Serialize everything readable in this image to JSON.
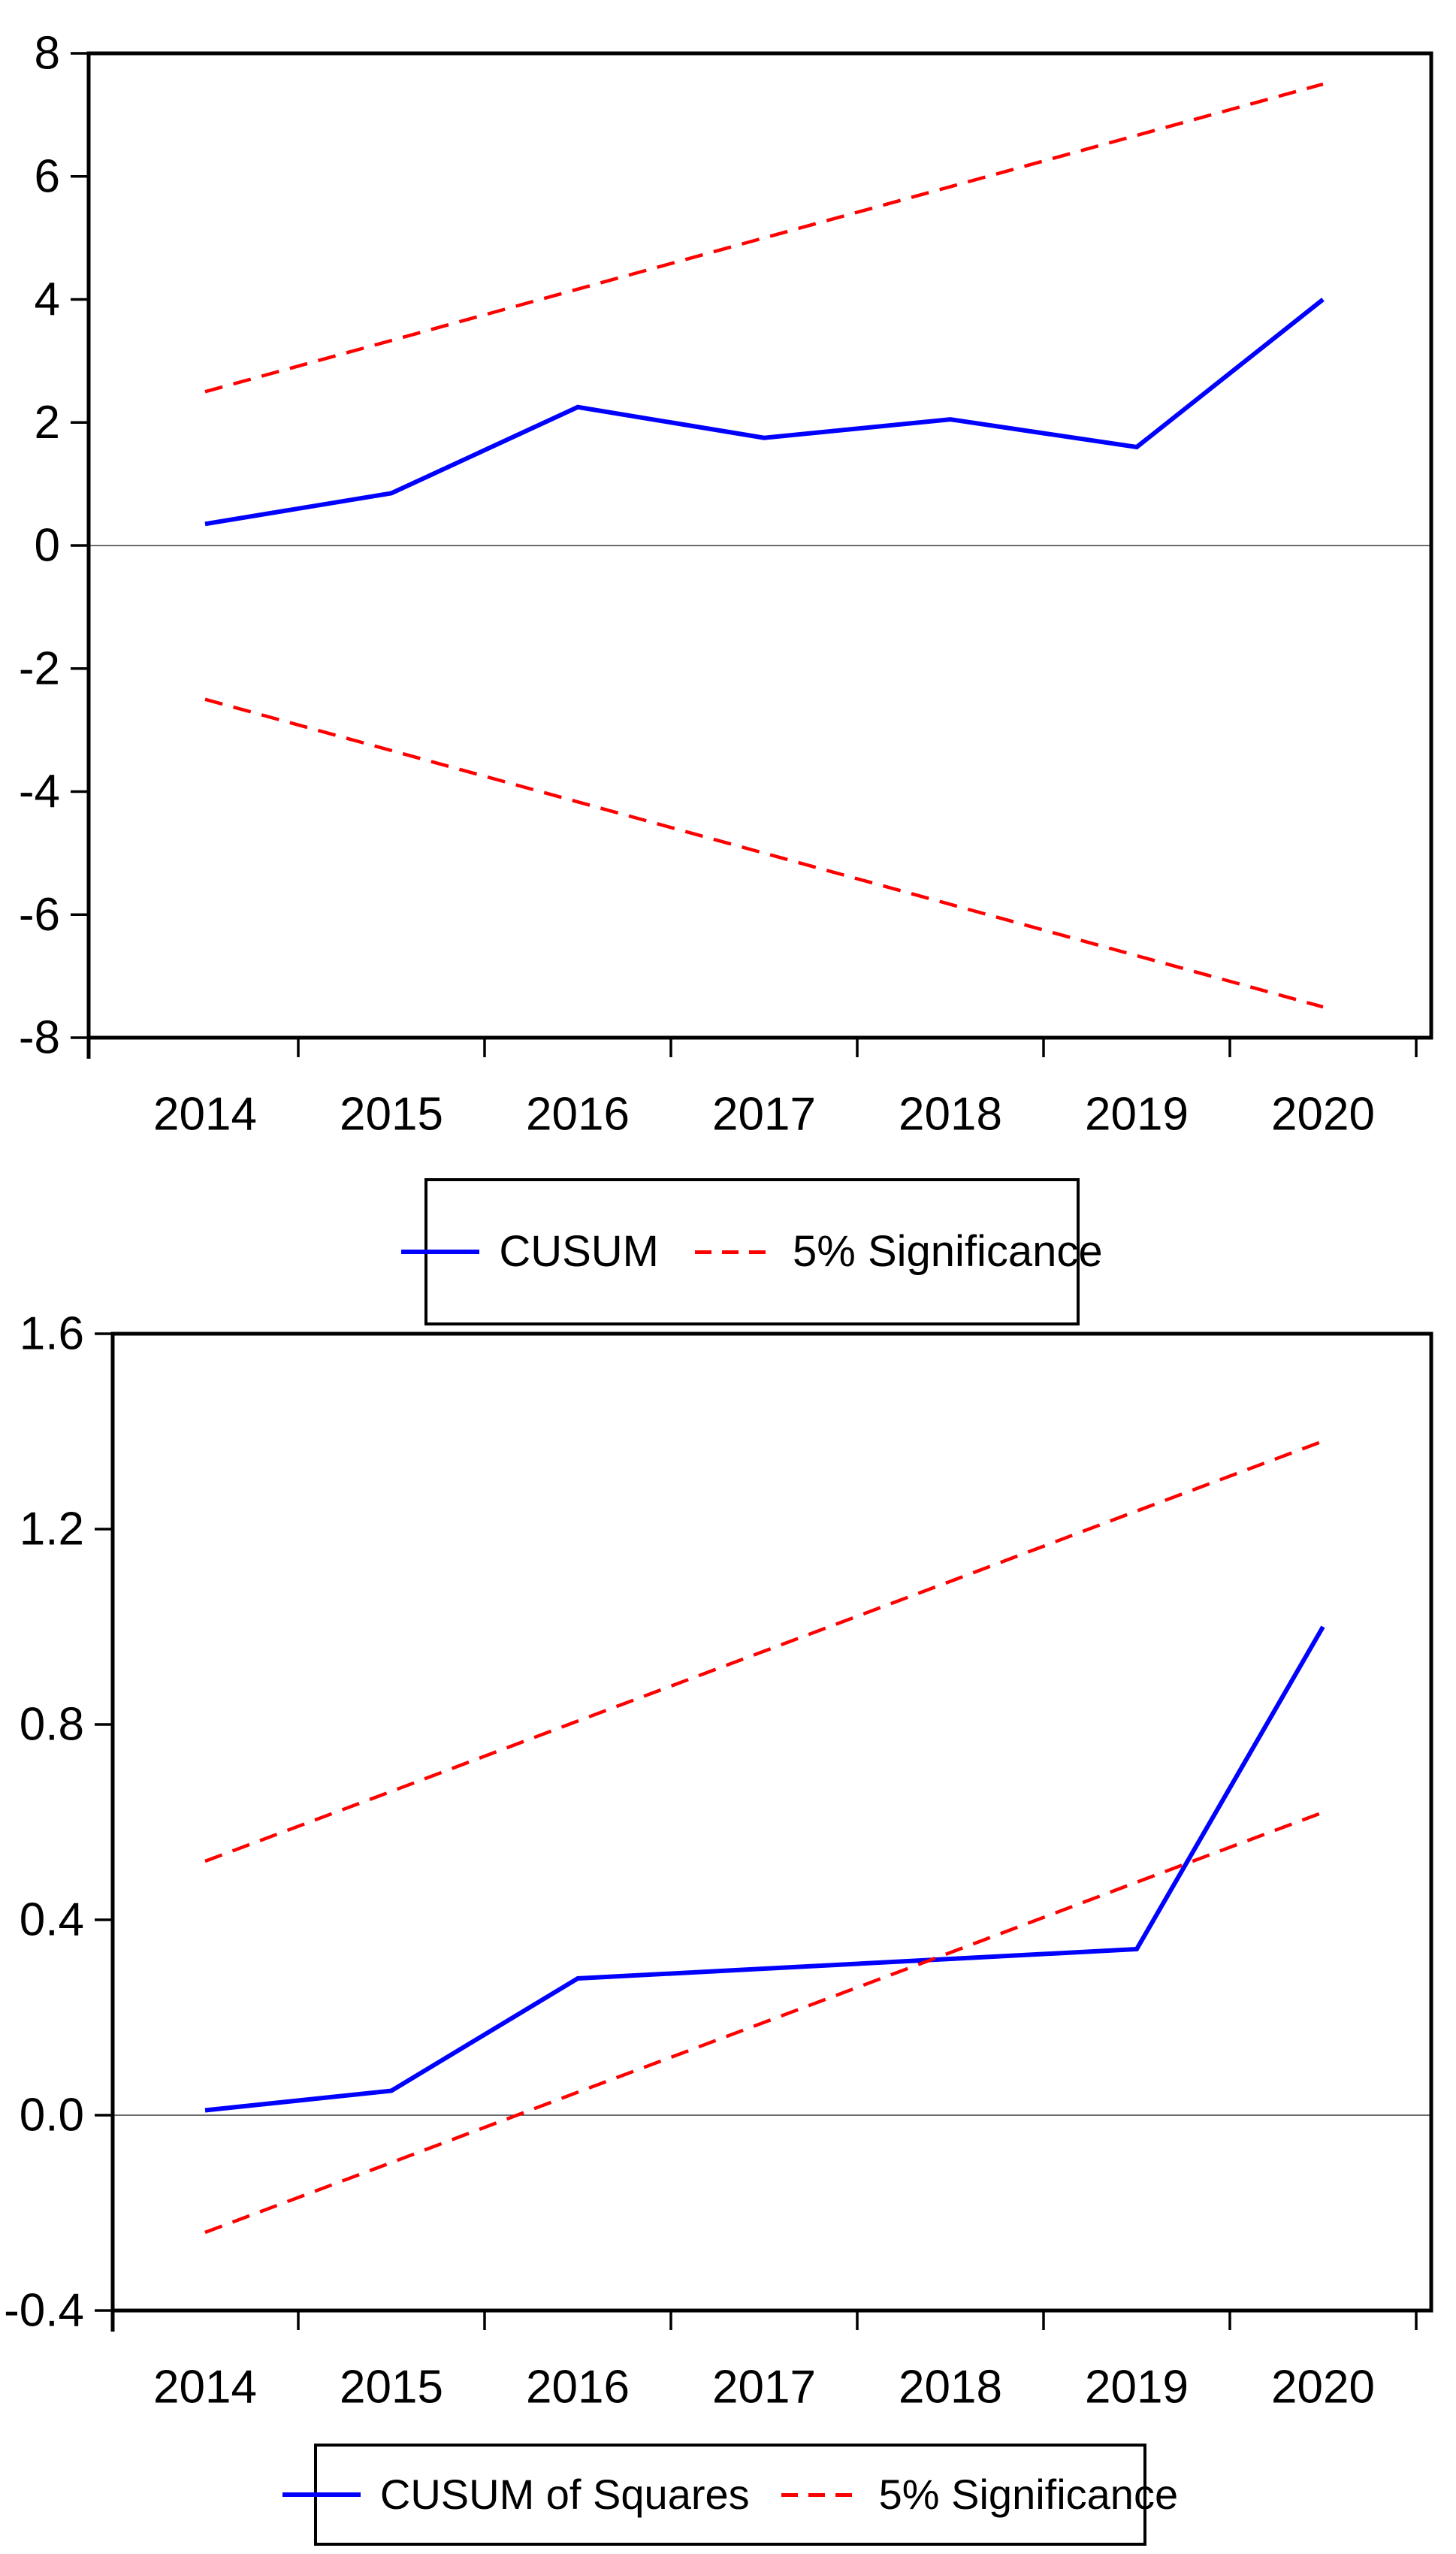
{
  "figure_background": "#ffffff",
  "accent_colors": {
    "series": "#0000ff",
    "significance": "#ff0000",
    "axis": "#000000"
  },
  "chart_data": [
    {
      "type": "line",
      "title": "",
      "xlabel": "",
      "ylabel": "",
      "x": [
        2014,
        2015,
        2016,
        2017,
        2018,
        2019,
        2020
      ],
      "xtick_labels": [
        "2014",
        "2015",
        "2016",
        "2017",
        "2018",
        "2019",
        "2020"
      ],
      "ylim": [
        -8,
        8
      ],
      "ytick_labels": [
        "8",
        "6",
        "4",
        "2",
        "0",
        "-2",
        "-4",
        "-6",
        "-8"
      ],
      "ytick_values": [
        8,
        6,
        4,
        2,
        0,
        -2,
        -4,
        -6,
        -8
      ],
      "grid": false,
      "zero_line": true,
      "legend_position": "below-center",
      "series": [
        {
          "name": "CUSUM",
          "color": "#0000ff",
          "style": "solid",
          "values": [
            0.35,
            0.85,
            2.25,
            1.75,
            2.05,
            1.6,
            4.0
          ]
        },
        {
          "name": "5% Significance (upper bound)",
          "color": "#ff0000",
          "style": "dashed",
          "values": [
            2.5,
            3.333,
            4.167,
            5.0,
            5.833,
            6.667,
            7.5
          ]
        },
        {
          "name": "5% Significance (lower bound)",
          "color": "#ff0000",
          "style": "dashed",
          "values": [
            -2.5,
            -3.333,
            -4.167,
            -5.0,
            -5.833,
            -6.667,
            -7.5
          ]
        }
      ],
      "legend": [
        {
          "label": "CUSUM",
          "color": "#0000ff",
          "style": "solid"
        },
        {
          "label": "5% Significance",
          "color": "#ff0000",
          "style": "dashed"
        }
      ]
    },
    {
      "type": "line",
      "title": "",
      "xlabel": "",
      "ylabel": "",
      "x": [
        2014,
        2015,
        2016,
        2017,
        2018,
        2019,
        2020
      ],
      "xtick_labels": [
        "2014",
        "2015",
        "2016",
        "2017",
        "2018",
        "2019",
        "2020"
      ],
      "ylim": [
        -0.4,
        1.6
      ],
      "ytick_labels": [
        "1.6",
        "1.2",
        "0.8",
        "0.4",
        "0.0",
        "-0.4"
      ],
      "ytick_values": [
        1.6,
        1.2,
        0.8,
        0.4,
        0.0,
        -0.4
      ],
      "grid": false,
      "zero_line": true,
      "legend_position": "below-center",
      "series": [
        {
          "name": "CUSUM of Squares",
          "color": "#0000ff",
          "style": "solid",
          "values": [
            0.01,
            0.05,
            0.28,
            0.3,
            0.32,
            0.34,
            1.0
          ]
        },
        {
          "name": "5% Significance (upper bound)",
          "color": "#ff0000",
          "style": "dashed",
          "values": [
            0.52,
            0.663,
            0.807,
            0.95,
            1.093,
            1.237,
            1.38
          ]
        },
        {
          "name": "5% Significance (lower bound)",
          "color": "#ff0000",
          "style": "dashed",
          "values": [
            -0.24,
            -0.097,
            0.047,
            0.19,
            0.333,
            0.477,
            0.62
          ]
        }
      ],
      "legend": [
        {
          "label": "CUSUM of Squares",
          "color": "#0000ff",
          "style": "solid"
        },
        {
          "label": "5% Significance",
          "color": "#ff0000",
          "style": "dashed"
        }
      ]
    }
  ]
}
